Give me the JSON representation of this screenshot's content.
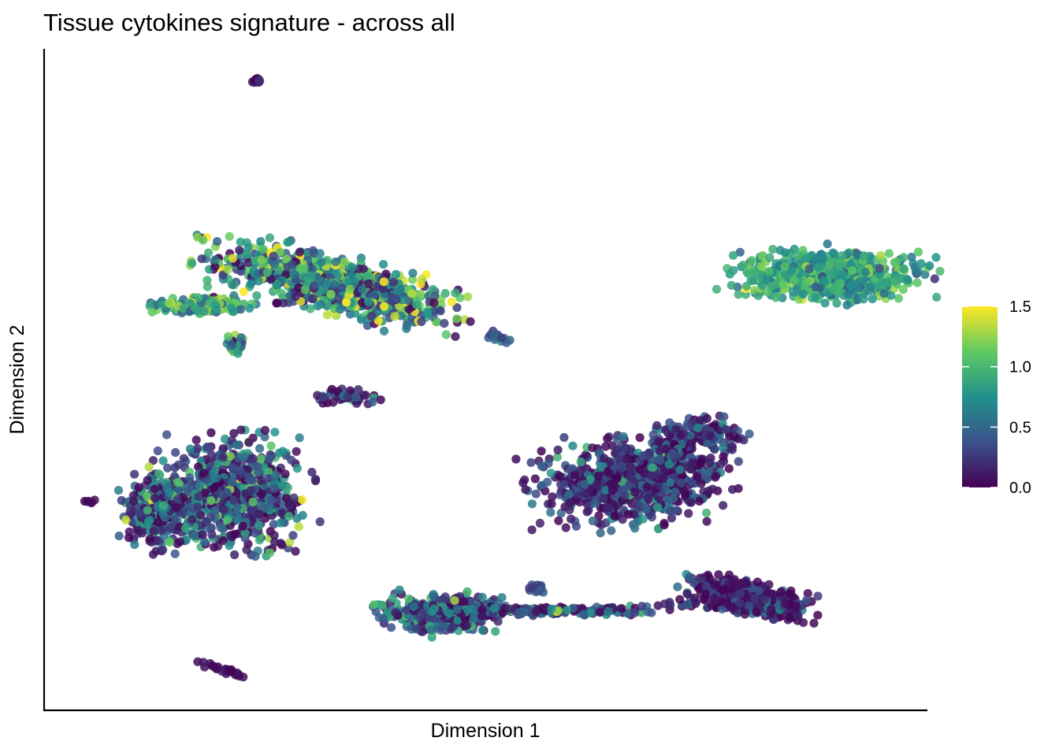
{
  "chart_data": {
    "type": "scatter",
    "title": "Tissue cytokines signature - across all",
    "xlabel": "Dimension 1",
    "ylabel": "Dimension 2",
    "x_ticks": [],
    "y_ticks": [],
    "xlim": [
      0,
      100
    ],
    "ylim": [
      0,
      100
    ],
    "grid": false,
    "colorbar": {
      "palette": "viridis",
      "min": 0.0,
      "max": 1.5,
      "ticks": [
        "0.0",
        "0.5",
        "1.0",
        "1.5"
      ],
      "stops": [
        "#440154",
        "#3b528b",
        "#21918c",
        "#5ec962",
        "#fde725"
      ],
      "placement": "right"
    },
    "clusters": [
      {
        "id": "top-left-large",
        "cx": 33.0,
        "cy": 64.6,
        "sx": 8.0,
        "sy": 2.4,
        "tilt": -0.32,
        "n": 900,
        "mean": 0.75,
        "spread": 0.45
      },
      {
        "id": "top-left-tail",
        "cx": 17.5,
        "cy": 61.5,
        "sx": 3.0,
        "sy": 0.7,
        "tilt": 0,
        "n": 160,
        "mean": 0.95,
        "spread": 0.35
      },
      {
        "id": "small-top",
        "cx": 24.0,
        "cy": 96.1,
        "sx": 0.4,
        "sy": 0.2,
        "tilt": 0,
        "n": 14,
        "mean": 0.1,
        "spread": 0.1
      },
      {
        "id": "small-left-mid",
        "cx": 21.5,
        "cy": 55.5,
        "sx": 0.6,
        "sy": 1.0,
        "tilt": 0,
        "n": 25,
        "mean": 0.75,
        "spread": 0.3
      },
      {
        "id": "small-center",
        "cx": 34.5,
        "cy": 47.3,
        "sx": 2.0,
        "sy": 0.6,
        "tilt": 0,
        "n": 50,
        "mean": 0.2,
        "spread": 0.35
      },
      {
        "id": "tiny-center",
        "cx": 51.5,
        "cy": 56.7,
        "sx": 1.0,
        "sy": 0.3,
        "tilt": -0.3,
        "n": 14,
        "mean": 0.45,
        "spread": 0.2
      },
      {
        "id": "top-right",
        "cx": 89.5,
        "cy": 66.2,
        "sx": 6.0,
        "sy": 2.2,
        "tilt": 0,
        "n": 600,
        "mean": 0.85,
        "spread": 0.2
      },
      {
        "id": "left-lower-main",
        "cx": 21.5,
        "cy": 32.5,
        "sx": 4.5,
        "sy": 4.5,
        "tilt": 0,
        "n": 650,
        "mean": 0.3,
        "spread": 0.45
      },
      {
        "id": "left-lower-arm",
        "cx": 13.0,
        "cy": 30.0,
        "sx": 2.6,
        "sy": 3.2,
        "tilt": 0,
        "n": 260,
        "mean": 0.3,
        "spread": 0.4
      },
      {
        "id": "tiny-far-left",
        "cx": 4.9,
        "cy": 31.3,
        "sx": 0.4,
        "sy": 0.15,
        "tilt": 0,
        "n": 6,
        "mean": 0.05,
        "spread": 0.05
      },
      {
        "id": "tiny-bottom-left",
        "cx": 20.0,
        "cy": 5.5,
        "sx": 1.8,
        "sy": 0.3,
        "tilt": -0.35,
        "n": 25,
        "mean": 0.05,
        "spread": 0.05
      },
      {
        "id": "right-middle",
        "cx": 67.0,
        "cy": 34.5,
        "sx": 6.0,
        "sy": 3.6,
        "tilt": 0.12,
        "n": 750,
        "mean": 0.2,
        "spread": 0.35
      },
      {
        "id": "right-middle-top",
        "cx": 74.5,
        "cy": 41.8,
        "sx": 2.8,
        "sy": 1.3,
        "tilt": 0,
        "n": 130,
        "mean": 0.2,
        "spread": 0.3
      },
      {
        "id": "right-middle-link",
        "cx": 71.8,
        "cy": 38.4,
        "sx": 0.6,
        "sy": 1.6,
        "tilt": 0,
        "n": 35,
        "mean": 0.2,
        "spread": 0.3
      },
      {
        "id": "bottom-left-blob",
        "cx": 45.0,
        "cy": 14.0,
        "sx": 3.8,
        "sy": 1.7,
        "tilt": 0,
        "n": 300,
        "mean": 0.35,
        "spread": 0.4
      },
      {
        "id": "bottom-strand",
        "cx": 56.0,
        "cy": 14.5,
        "sx": 8.5,
        "sy": 0.45,
        "tilt": 0,
        "n": 200,
        "mean": 0.3,
        "spread": 0.35
      },
      {
        "id": "bottom-strand-nub",
        "cx": 55.8,
        "cy": 17.8,
        "sx": 0.6,
        "sy": 0.5,
        "tilt": 0,
        "n": 12,
        "mean": 0.35,
        "spread": 0.2
      },
      {
        "id": "bottom-right-strand",
        "cx": 77.0,
        "cy": 15.0,
        "sx": 4.5,
        "sy": 0.4,
        "tilt": -0.08,
        "n": 50,
        "mean": 0.2,
        "spread": 0.25
      },
      {
        "id": "bottom-right-blob",
        "cx": 80.5,
        "cy": 16.6,
        "sx": 4.4,
        "sy": 1.4,
        "tilt": -0.28,
        "n": 320,
        "mean": 0.1,
        "spread": 0.2
      }
    ]
  }
}
